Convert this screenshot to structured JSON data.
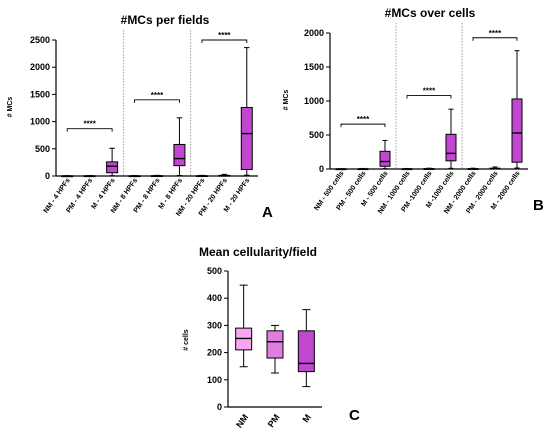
{
  "chart_data": [
    {
      "id": "A",
      "type": "box",
      "title": "#MCs per fields",
      "ylabel": "# MCs",
      "panel_label": "A",
      "ylim": [
        0,
        2500
      ],
      "yticks": [
        0,
        500,
        1000,
        1500,
        2000,
        2500
      ],
      "colors": {
        "NM": "#f6a6f2",
        "PM": "#e07ee0",
        "M": "#c146d0"
      },
      "categories": [
        "NM - 4 HPFs",
        "PM - 4 HPFs",
        "M - 4 HPFs",
        "NM - 8 HPFs",
        "PM - 8 HPFs",
        "M - 8 HPFs",
        "NM - 20 HPFs",
        "PM - 20 HPFs",
        "M - 20 HPFs"
      ],
      "boxes": [
        {
          "group": "NM",
          "min": 0,
          "q1": 0,
          "median": 0,
          "q3": 2,
          "max": 5
        },
        {
          "group": "PM",
          "min": 0,
          "q1": 0,
          "median": 1,
          "q3": 3,
          "max": 8
        },
        {
          "group": "M",
          "min": 5,
          "q1": 60,
          "median": 180,
          "q3": 260,
          "max": 510
        },
        {
          "group": "NM",
          "min": 0,
          "q1": 0,
          "median": 0,
          "q3": 3,
          "max": 8
        },
        {
          "group": "PM",
          "min": 0,
          "q1": 0,
          "median": 2,
          "q3": 5,
          "max": 12
        },
        {
          "group": "M",
          "min": 10,
          "q1": 190,
          "median": 320,
          "q3": 580,
          "max": 1070
        },
        {
          "group": "NM",
          "min": 0,
          "q1": 0,
          "median": 1,
          "q3": 5,
          "max": 12
        },
        {
          "group": "PM",
          "min": 0,
          "q1": 2,
          "median": 5,
          "q3": 12,
          "max": 30
        },
        {
          "group": "M",
          "min": 15,
          "q1": 120,
          "median": 780,
          "q3": 1260,
          "max": 2360
        }
      ],
      "separators_after": [
        2,
        5
      ],
      "significance": [
        {
          "from": 0,
          "to": 2,
          "y": 870,
          "label": "****"
        },
        {
          "from": 3,
          "to": 5,
          "y": 1400,
          "label": "****"
        },
        {
          "from": 6,
          "to": 8,
          "y": 2500,
          "label": "****"
        }
      ]
    },
    {
      "id": "B",
      "type": "box",
      "title": "#MCs over cells",
      "ylabel": "# MCs",
      "panel_label": "B",
      "ylim": [
        0,
        2000
      ],
      "yticks": [
        0,
        500,
        1000,
        1500,
        2000
      ],
      "colors": {
        "NM": "#f6a6f2",
        "PM": "#e07ee0",
        "M": "#c146d0"
      },
      "categories": [
        "NM - 500 cells",
        "PM - 500 cells",
        "M - 500 cells",
        "NM - 1000 cells",
        "PM -1000 cells",
        "M -1000 cells",
        "NM - 2000 cells",
        "PM - 2000 cells",
        "M - 2000 cells"
      ],
      "boxes": [
        {
          "group": "NM",
          "min": 0,
          "q1": 0,
          "median": 0,
          "q3": 2,
          "max": 5
        },
        {
          "group": "PM",
          "min": 0,
          "q1": 0,
          "median": 1,
          "q3": 3,
          "max": 8
        },
        {
          "group": "M",
          "min": 5,
          "q1": 40,
          "median": 110,
          "q3": 260,
          "max": 420
        },
        {
          "group": "NM",
          "min": 0,
          "q1": 0,
          "median": 0,
          "q3": 3,
          "max": 8
        },
        {
          "group": "PM",
          "min": 0,
          "q1": 0,
          "median": 2,
          "q3": 5,
          "max": 12
        },
        {
          "group": "M",
          "min": 10,
          "q1": 120,
          "median": 230,
          "q3": 510,
          "max": 880
        },
        {
          "group": "NM",
          "min": 0,
          "q1": 0,
          "median": 1,
          "q3": 5,
          "max": 12
        },
        {
          "group": "PM",
          "min": 0,
          "q1": 2,
          "median": 5,
          "q3": 12,
          "max": 30
        },
        {
          "group": "M",
          "min": 15,
          "q1": 100,
          "median": 530,
          "q3": 1030,
          "max": 1740
        }
      ],
      "separators_after": [
        2,
        5
      ],
      "significance": [
        {
          "from": 0,
          "to": 2,
          "y": 660,
          "label": "****"
        },
        {
          "from": 3,
          "to": 5,
          "y": 1080,
          "label": "****"
        },
        {
          "from": 6,
          "to": 8,
          "y": 1930,
          "label": "****"
        }
      ]
    },
    {
      "id": "C",
      "type": "box",
      "title": "Mean cellularity/field",
      "ylabel": "# cells",
      "panel_label": "C",
      "ylim": [
        0,
        500
      ],
      "yticks": [
        0,
        100,
        200,
        300,
        400,
        500
      ],
      "colors": {
        "NM": "#f6a6f2",
        "PM": "#e07ee0",
        "M": "#c146d0"
      },
      "categories": [
        "NM",
        "PM",
        "M"
      ],
      "boxes": [
        {
          "group": "NM",
          "min": 148,
          "q1": 210,
          "median": 252,
          "q3": 290,
          "max": 448
        },
        {
          "group": "PM",
          "min": 125,
          "q1": 180,
          "median": 240,
          "q3": 280,
          "max": 300
        },
        {
          "group": "M",
          "min": 75,
          "q1": 130,
          "median": 160,
          "q3": 280,
          "max": 358
        }
      ],
      "separators_after": [],
      "significance": []
    }
  ]
}
